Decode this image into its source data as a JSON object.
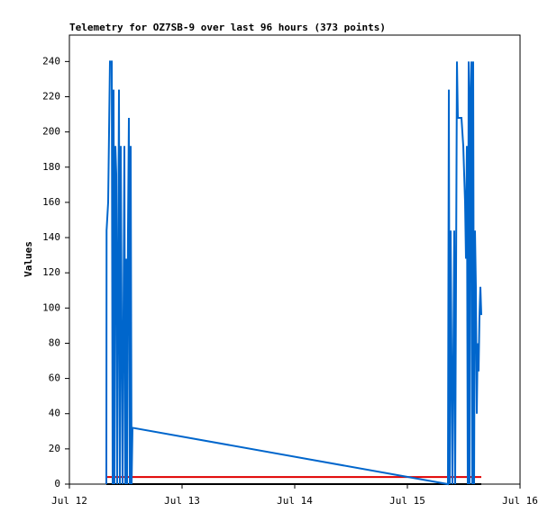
{
  "chart_data": {
    "type": "line",
    "title": "Telemetry for OZ7SB-9 over last 96 hours (373 points)",
    "ylabel": "Values",
    "xlim": [
      12,
      16
    ],
    "xticks": [
      {
        "value": 12,
        "label": "Jul 12"
      },
      {
        "value": 13,
        "label": "Jul 13"
      },
      {
        "value": 14,
        "label": "Jul 14"
      },
      {
        "value": 15,
        "label": "Jul 15"
      },
      {
        "value": 16,
        "label": "Jul 16"
      }
    ],
    "ylim": [
      0,
      255
    ],
    "yticks": [
      0,
      20,
      40,
      60,
      80,
      100,
      120,
      140,
      160,
      180,
      200,
      220,
      240
    ],
    "series": [
      {
        "color": "#000000",
        "x": [
          12.328,
          15.656
        ],
        "values": [
          0,
          0
        ]
      },
      {
        "color": "#e00000",
        "x": [
          12.328,
          15.656
        ],
        "values": [
          4,
          4
        ]
      },
      {
        "color": "#0066cc",
        "x": [
          12.328,
          12.33,
          12.344,
          12.36,
          12.376,
          12.384,
          12.392,
          12.4,
          12.408,
          12.416,
          12.424,
          12.44,
          12.448,
          12.456,
          12.464,
          12.472,
          12.488,
          12.496,
          12.504,
          12.512,
          12.52,
          12.528,
          12.536,
          12.544,
          12.552,
          12.56,
          15.36,
          15.368,
          15.376,
          15.384,
          15.392,
          15.4,
          15.416,
          15.424,
          15.44,
          15.448,
          15.464,
          15.48,
          15.496,
          15.512,
          15.52,
          15.528,
          15.536,
          15.544,
          15.552,
          15.56,
          15.568,
          15.576,
          15.584,
          15.592,
          15.6,
          15.608,
          15.616,
          15.624,
          15.632,
          15.64,
          15.648,
          15.656
        ],
        "values": [
          0,
          144,
          160,
          240,
          240,
          0,
          224,
          0,
          192,
          176,
          0,
          224,
          0,
          192,
          88,
          0,
          192,
          0,
          128,
          0,
          144,
          208,
          0,
          192,
          0,
          32,
          0,
          224,
          0,
          144,
          72,
          0,
          144,
          0,
          240,
          208,
          208,
          208,
          192,
          160,
          128,
          192,
          0,
          240,
          0,
          224,
          240,
          0,
          240,
          0,
          144,
          112,
          40,
          80,
          64,
          96,
          112,
          96
        ]
      }
    ]
  }
}
